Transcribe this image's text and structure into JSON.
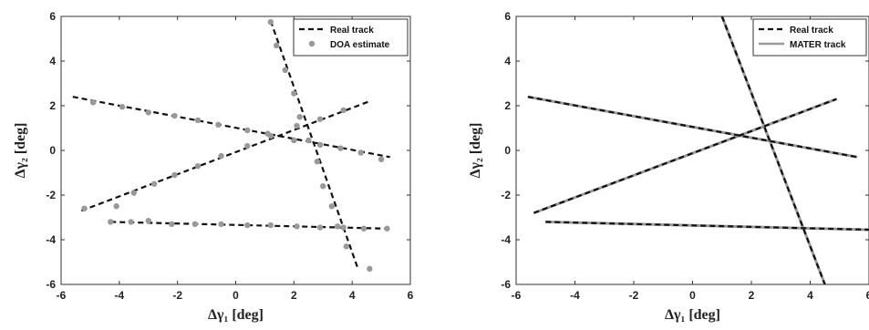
{
  "chart_data": [
    {
      "type": "scatter",
      "xlabel": "Δγ₁ [deg]",
      "ylabel": "Δγ₂ [deg]",
      "xlim": [
        -6,
        6
      ],
      "ylim": [
        -6,
        6
      ],
      "xticks": [
        "-6",
        "-4",
        "-2",
        "0",
        "2",
        "4",
        "6"
      ],
      "yticks": [
        "-6",
        "-4",
        "-2",
        "0",
        "2",
        "4",
        "6"
      ],
      "grid": false,
      "legend_position": "top-right",
      "series": [
        {
          "name": "Real track",
          "style": "dashed-line",
          "color": "#111111",
          "tracks": [
            [
              [
                -5.6,
                2.4
              ],
              [
                5.3,
                -0.3
              ]
            ],
            [
              [
                -5.3,
                -2.7
              ],
              [
                4.6,
                2.2
              ]
            ],
            [
              [
                -4.3,
                -3.2
              ],
              [
                5.2,
                -3.5
              ]
            ],
            [
              [
                1.2,
                5.8
              ],
              [
                4.2,
                -5.3
              ]
            ]
          ]
        },
        {
          "name": "DOA estimate",
          "style": "markers",
          "color": "#999999",
          "points": [
            [
              -5.2,
              -2.6
            ],
            [
              -4.1,
              -2.5
            ],
            [
              -3.5,
              -1.9
            ],
            [
              -2.8,
              -1.5
            ],
            [
              -2.1,
              -1.1
            ],
            [
              -1.3,
              -0.7
            ],
            [
              -0.5,
              -0.25
            ],
            [
              0.4,
              0.2
            ],
            [
              1.2,
              0.65
            ],
            [
              2.1,
              1.1
            ],
            [
              2.9,
              1.4
            ],
            [
              3.7,
              1.8
            ],
            [
              -4.9,
              2.15
            ],
            [
              -3.9,
              1.95
            ],
            [
              -3.0,
              1.7
            ],
            [
              -2.1,
              1.55
            ],
            [
              -1.3,
              1.35
            ],
            [
              -0.6,
              1.15
            ],
            [
              0.4,
              0.9
            ],
            [
              1.1,
              0.75
            ],
            [
              2.0,
              0.45
            ],
            [
              2.9,
              0.25
            ],
            [
              3.6,
              0.1
            ],
            [
              4.3,
              -0.1
            ],
            [
              5.0,
              -0.4
            ],
            [
              -4.3,
              -3.2
            ],
            [
              -3.6,
              -3.2
            ],
            [
              -3.0,
              -3.15
            ],
            [
              -2.2,
              -3.3
            ],
            [
              -1.4,
              -3.3
            ],
            [
              -0.5,
              -3.3
            ],
            [
              0.4,
              -3.35
            ],
            [
              1.2,
              -3.35
            ],
            [
              2.1,
              -3.4
            ],
            [
              2.9,
              -3.45
            ],
            [
              3.7,
              -3.45
            ],
            [
              4.4,
              -3.5
            ],
            [
              5.2,
              -3.5
            ],
            [
              1.2,
              5.75
            ],
            [
              1.4,
              4.7
            ],
            [
              1.7,
              3.6
            ],
            [
              2.0,
              2.55
            ],
            [
              2.2,
              1.5
            ],
            [
              2.5,
              0.45
            ],
            [
              2.8,
              -0.5
            ],
            [
              3.0,
              -1.6
            ],
            [
              3.3,
              -2.5
            ],
            [
              3.5,
              -3.4
            ],
            [
              3.8,
              -4.3
            ],
            [
              4.6,
              -5.3
            ]
          ]
        }
      ]
    },
    {
      "type": "line",
      "xlabel": "Δγ₁ [deg]",
      "ylabel": "Δγ₂ [deg]",
      "xlim": [
        -6,
        6
      ],
      "ylim": [
        -6,
        6
      ],
      "xticks": [
        "-6",
        "-4",
        "-2",
        "0",
        "2",
        "4",
        "6"
      ],
      "yticks": [
        "-6",
        "-4",
        "-2",
        "0",
        "2",
        "4",
        "6"
      ],
      "grid": false,
      "legend_position": "top-right",
      "series": [
        {
          "name": "Real track",
          "style": "dashed-line",
          "color": "#111111",
          "tracks": [
            [
              [
                -5.6,
                2.4
              ],
              [
                5.6,
                -0.3
              ]
            ],
            [
              [
                -5.4,
                -2.8
              ],
              [
                4.9,
                2.3
              ]
            ],
            [
              [
                -5.0,
                -3.2
              ],
              [
                6.0,
                -3.55
              ]
            ],
            [
              [
                1.0,
                6.0
              ],
              [
                4.5,
                -6.0
              ]
            ]
          ]
        },
        {
          "name": "MATER track",
          "style": "solid-line",
          "color": "#999999",
          "tracks": [
            [
              [
                -5.6,
                2.4
              ],
              [
                5.6,
                -0.3
              ]
            ],
            [
              [
                -5.4,
                -2.8
              ],
              [
                4.9,
                2.3
              ]
            ],
            [
              [
                -5.0,
                -3.2
              ],
              [
                6.0,
                -3.55
              ]
            ],
            [
              [
                1.0,
                6.0
              ],
              [
                4.5,
                -6.0
              ]
            ]
          ]
        }
      ]
    }
  ]
}
